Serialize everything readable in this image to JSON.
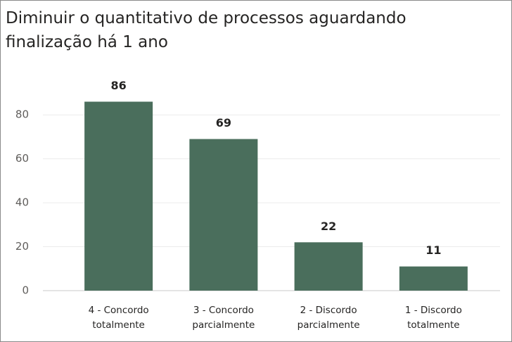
{
  "chart_data": {
    "type": "bar",
    "title": "Diminuir o quantitativo de processos aguardando finalização há 1 ano",
    "categories": [
      "4 - Concordo totalmente",
      "3 - Concordo parcialmente",
      "2 - Discordo parcialmente",
      "1 - Discordo totalmente"
    ],
    "values": [
      86,
      69,
      22,
      11
    ],
    "color": "#4a6e5c",
    "ylim": [
      0,
      90
    ],
    "yticks": [
      0,
      20,
      40,
      60,
      80
    ],
    "grid": true
  }
}
